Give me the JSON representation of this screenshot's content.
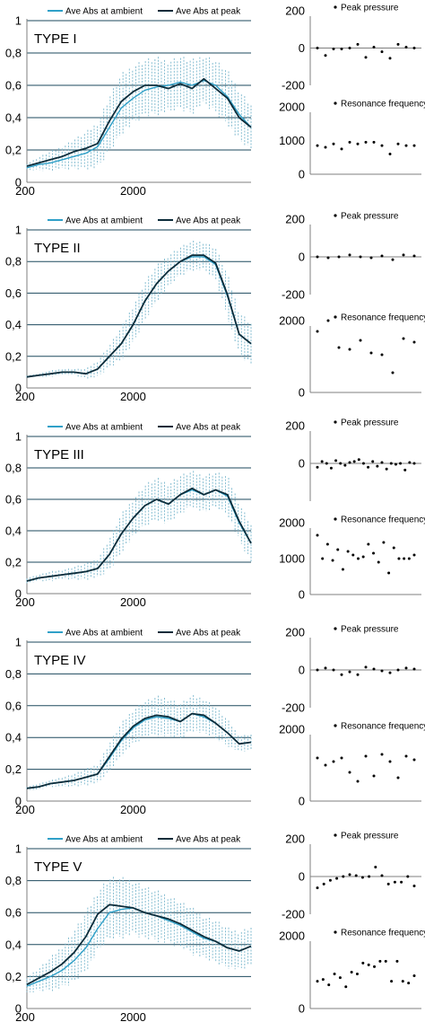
{
  "chart_data": [
    {
      "type": "line",
      "title": "TYPE I",
      "legend": [
        "Ave Abs at ambient",
        "Ave Abs at peak"
      ],
      "legend_placement": "top",
      "ylim": [
        0,
        1
      ],
      "yticks": [
        "0",
        "0,2",
        "0,4",
        "0,6",
        "0,8",
        "1"
      ],
      "xlim": [
        200,
        4000
      ],
      "xticks": [
        "200",
        "2000"
      ],
      "grid": true,
      "x": [
        200,
        400,
        600,
        800,
        1000,
        1200,
        1400,
        1600,
        1800,
        2000,
        2200,
        2400,
        2600,
        2800,
        3000,
        3200,
        3400,
        3600,
        3800,
        4000
      ],
      "series": [
        {
          "name": "Ave Abs at ambient",
          "values": [
            0.09,
            0.11,
            0.12,
            0.14,
            0.16,
            0.18,
            0.22,
            0.34,
            0.46,
            0.52,
            0.57,
            0.59,
            0.6,
            0.62,
            0.6,
            0.63,
            0.6,
            0.53,
            0.42,
            0.34
          ]
        },
        {
          "name": "Ave Abs at peak",
          "values": [
            0.1,
            0.12,
            0.14,
            0.16,
            0.19,
            0.21,
            0.24,
            0.38,
            0.5,
            0.56,
            0.6,
            0.6,
            0.58,
            0.61,
            0.58,
            0.64,
            0.58,
            0.52,
            0.4,
            0.34
          ]
        }
      ],
      "error_spread": [
        0.02,
        0.04,
        0.06,
        0.07,
        0.09,
        0.11,
        0.14,
        0.17,
        0.18,
        0.18,
        0.17,
        0.17,
        0.16,
        0.16,
        0.16,
        0.15,
        0.16,
        0.16,
        0.16,
        0.14
      ]
    },
    {
      "type": "line",
      "title": "TYPE II",
      "legend": [
        "Ave Abs at ambient",
        "Ave Abs at peak"
      ],
      "legend_placement": "top",
      "ylim": [
        0,
        1
      ],
      "yticks": [
        "0",
        "0,2",
        "0,4",
        "0,6",
        "0,8",
        "1"
      ],
      "xlim": [
        200,
        4000
      ],
      "xticks": [
        "200",
        "2000"
      ],
      "grid": true,
      "x": [
        200,
        400,
        600,
        800,
        1000,
        1200,
        1400,
        1600,
        1800,
        2000,
        2200,
        2400,
        2600,
        2800,
        3000,
        3200,
        3400,
        3600,
        3800,
        4000
      ],
      "series": [
        {
          "name": "Ave Abs at ambient",
          "values": [
            0.07,
            0.08,
            0.09,
            0.1,
            0.1,
            0.09,
            0.12,
            0.2,
            0.28,
            0.4,
            0.55,
            0.66,
            0.74,
            0.8,
            0.83,
            0.83,
            0.78,
            0.58,
            0.34,
            0.28
          ]
        },
        {
          "name": "Ave Abs at peak",
          "values": [
            0.07,
            0.08,
            0.09,
            0.1,
            0.1,
            0.09,
            0.12,
            0.2,
            0.28,
            0.4,
            0.55,
            0.66,
            0.74,
            0.8,
            0.84,
            0.84,
            0.79,
            0.59,
            0.34,
            0.28
          ]
        }
      ],
      "error_spread": [
        0.01,
        0.01,
        0.02,
        0.02,
        0.02,
        0.03,
        0.05,
        0.07,
        0.1,
        0.12,
        0.12,
        0.11,
        0.1,
        0.09,
        0.09,
        0.09,
        0.1,
        0.13,
        0.14,
        0.13
      ]
    },
    {
      "type": "line",
      "title": "TYPE III",
      "legend": [
        "Ave Abs at ambient",
        "Ave Abs at peak"
      ],
      "legend_placement": "top",
      "ylim": [
        0,
        1
      ],
      "yticks": [
        "0",
        "0,2",
        "0,4",
        "0,6",
        "0,8",
        "1"
      ],
      "xlim": [
        200,
        4000
      ],
      "xticks": [
        "200",
        "2000"
      ],
      "grid": true,
      "x": [
        200,
        400,
        600,
        800,
        1000,
        1200,
        1400,
        1600,
        1800,
        2000,
        2200,
        2400,
        2600,
        2800,
        3000,
        3200,
        3400,
        3600,
        3800,
        4000
      ],
      "series": [
        {
          "name": "Ave Abs at ambient",
          "values": [
            0.08,
            0.1,
            0.11,
            0.12,
            0.13,
            0.14,
            0.16,
            0.25,
            0.38,
            0.48,
            0.56,
            0.6,
            0.57,
            0.63,
            0.66,
            0.63,
            0.66,
            0.62,
            0.45,
            0.32
          ]
        },
        {
          "name": "Ave Abs at peak",
          "values": [
            0.08,
            0.1,
            0.11,
            0.12,
            0.13,
            0.14,
            0.16,
            0.25,
            0.38,
            0.48,
            0.56,
            0.6,
            0.57,
            0.63,
            0.67,
            0.63,
            0.66,
            0.63,
            0.46,
            0.32
          ]
        }
      ],
      "error_spread": [
        0.02,
        0.02,
        0.03,
        0.03,
        0.04,
        0.05,
        0.06,
        0.1,
        0.12,
        0.12,
        0.13,
        0.13,
        0.13,
        0.12,
        0.11,
        0.12,
        0.11,
        0.12,
        0.12,
        0.12
      ]
    },
    {
      "type": "line",
      "title": "TYPE IV",
      "legend": [
        "Ave Abs at ambient",
        "Ave Abs at peak"
      ],
      "legend_placement": "top",
      "ylim": [
        0,
        1
      ],
      "yticks": [
        "0",
        "0,2",
        "0,4",
        "0,6",
        "0,8",
        "1"
      ],
      "xlim": [
        200,
        4000
      ],
      "xticks": [
        "200",
        "2000"
      ],
      "grid": true,
      "x": [
        200,
        400,
        600,
        800,
        1000,
        1200,
        1400,
        1600,
        1800,
        2000,
        2200,
        2400,
        2600,
        2800,
        3000,
        3200,
        3400,
        3600,
        3800,
        4000
      ],
      "series": [
        {
          "name": "Ave Abs at ambient",
          "values": [
            0.08,
            0.09,
            0.11,
            0.12,
            0.13,
            0.15,
            0.17,
            0.27,
            0.38,
            0.46,
            0.51,
            0.53,
            0.52,
            0.5,
            0.55,
            0.53,
            0.49,
            0.43,
            0.36,
            0.37
          ]
        },
        {
          "name": "Ave Abs at peak",
          "values": [
            0.08,
            0.09,
            0.11,
            0.12,
            0.13,
            0.15,
            0.17,
            0.28,
            0.39,
            0.47,
            0.52,
            0.54,
            0.53,
            0.5,
            0.55,
            0.54,
            0.49,
            0.43,
            0.36,
            0.37
          ]
        }
      ],
      "error_spread": [
        0.01,
        0.02,
        0.02,
        0.03,
        0.04,
        0.05,
        0.06,
        0.09,
        0.1,
        0.11,
        0.11,
        0.12,
        0.12,
        0.11,
        0.11,
        0.11,
        0.1,
        0.08,
        0.05,
        0.05
      ]
    },
    {
      "type": "line",
      "title": "TYPE V",
      "legend": [
        "Ave Abs at ambient",
        "Ave Abs at peak"
      ],
      "legend_placement": "top",
      "ylim": [
        0,
        1
      ],
      "yticks": [
        "0",
        "0,2",
        "0,4",
        "0,6",
        "0,8",
        "1"
      ],
      "xlim": [
        200,
        4000
      ],
      "xticks": [
        "200",
        "2000"
      ],
      "grid": true,
      "x": [
        200,
        400,
        600,
        800,
        1000,
        1200,
        1400,
        1600,
        1800,
        2000,
        2200,
        2400,
        2600,
        2800,
        3000,
        3200,
        3400,
        3600,
        3800,
        4000
      ],
      "series": [
        {
          "name": "Ave Abs at ambient",
          "values": [
            0.14,
            0.17,
            0.2,
            0.24,
            0.3,
            0.38,
            0.5,
            0.6,
            0.62,
            0.63,
            0.6,
            0.58,
            0.55,
            0.52,
            0.48,
            0.44,
            0.42,
            0.38,
            0.36,
            0.39
          ]
        },
        {
          "name": "Ave Abs at peak",
          "values": [
            0.15,
            0.19,
            0.23,
            0.28,
            0.35,
            0.45,
            0.59,
            0.65,
            0.64,
            0.63,
            0.6,
            0.58,
            0.56,
            0.53,
            0.49,
            0.45,
            0.42,
            0.38,
            0.36,
            0.39
          ]
        }
      ],
      "error_spread": [
        0.05,
        0.07,
        0.1,
        0.13,
        0.16,
        0.18,
        0.19,
        0.19,
        0.18,
        0.17,
        0.16,
        0.15,
        0.15,
        0.14,
        0.14,
        0.13,
        0.13,
        0.12,
        0.12,
        0.12
      ]
    },
    {
      "type": "scatter",
      "title": "Peak pressure",
      "group": "TYPE I",
      "ylim": [
        -200,
        200
      ],
      "yticks": [
        "-200",
        "0",
        "200"
      ],
      "values": [
        0,
        -40,
        -5,
        -5,
        0,
        20,
        -50,
        5,
        -20,
        -55,
        20,
        5,
        0
      ]
    },
    {
      "type": "scatter",
      "title": "Resonance frequency",
      "group": "TYPE I",
      "ylim": [
        0,
        2000
      ],
      "yticks": [
        "0",
        "1000",
        "2000"
      ],
      "values": [
        850,
        800,
        900,
        750,
        950,
        900,
        950,
        950,
        850,
        600,
        900,
        850,
        850
      ]
    },
    {
      "type": "scatter",
      "title": "Peak pressure",
      "group": "TYPE II",
      "ylim": [
        -200,
        200
      ],
      "yticks": [
        "-200",
        "0",
        "200"
      ],
      "values": [
        0,
        -5,
        0,
        10,
        0,
        -5,
        5,
        -15,
        10,
        5
      ]
    },
    {
      "type": "scatter",
      "title": "Resonance frequency",
      "group": "TYPE II",
      "ylim": [
        0,
        2000
      ],
      "yticks": [
        "0",
        "2000"
      ],
      "values": [
        1700,
        2000,
        1250,
        1200,
        1450,
        1100,
        1050,
        550,
        1500,
        1400
      ]
    },
    {
      "type": "scatter",
      "title": "Peak pressure",
      "group": "TYPE III",
      "ylim": [
        -200,
        200
      ],
      "yticks": [
        "0",
        "200"
      ],
      "values": [
        -20,
        10,
        0,
        -25,
        15,
        0,
        -10,
        5,
        10,
        20,
        0,
        -20,
        10,
        -15,
        5,
        -30,
        0,
        -5,
        0,
        -35,
        5,
        0
      ]
    },
    {
      "type": "scatter",
      "title": "Resonance frequency",
      "group": "TYPE III",
      "ylim": [
        0,
        2000
      ],
      "yticks": [
        "0",
        "1000",
        "2000"
      ],
      "values": [
        1650,
        1000,
        1400,
        950,
        1250,
        700,
        1200,
        1100,
        1000,
        1050,
        1400,
        1150,
        900,
        1450,
        600,
        1300,
        1000,
        1000,
        1000,
        1100
      ]
    },
    {
      "type": "scatter",
      "title": "Peak pressure",
      "group": "TYPE IV",
      "ylim": [
        -200,
        200
      ],
      "yticks": [
        "-200",
        "0",
        "200"
      ],
      "values": [
        0,
        10,
        0,
        -25,
        -10,
        -25,
        15,
        5,
        -5,
        -15,
        0,
        10,
        5
      ]
    },
    {
      "type": "scatter",
      "title": "Resonance frequency",
      "group": "TYPE IV",
      "ylim": [
        0,
        2000
      ],
      "yticks": [
        "0",
        "2000"
      ],
      "values": [
        1200,
        1000,
        1100,
        1200,
        800,
        550,
        1250,
        700,
        1300,
        1100,
        650,
        1250,
        1150
      ]
    },
    {
      "type": "scatter",
      "title": "Peak pressure",
      "group": "TYPE V",
      "ylim": [
        -200,
        200
      ],
      "yticks": [
        "-200",
        "0",
        "200"
      ],
      "values": [
        -60,
        -40,
        -20,
        -10,
        0,
        10,
        5,
        -5,
        0,
        50,
        5,
        -40,
        -30,
        -30,
        0,
        -50
      ]
    },
    {
      "type": "scatter",
      "title": "Resonance frequency",
      "group": "TYPE V",
      "ylim": [
        0,
        2000
      ],
      "yticks": [
        "0",
        "2000"
      ],
      "values": [
        750,
        800,
        650,
        950,
        850,
        600,
        1000,
        950,
        1250,
        1200,
        1150,
        1300,
        1300,
        750,
        1300,
        750,
        700,
        900
      ]
    }
  ],
  "colors": {
    "ambient": "#2fa0c8",
    "peak": "#0c2c3a",
    "error_bars": "#78b6cc",
    "grid": "#1e4a5e",
    "axis": "#7f7f7f",
    "point": "#000000"
  }
}
